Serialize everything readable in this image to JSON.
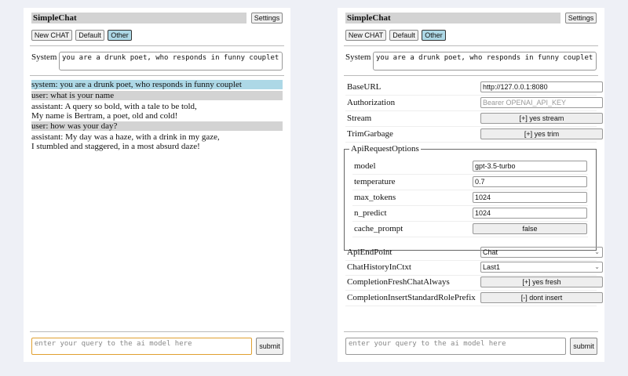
{
  "app": {
    "title": "SimpleChat",
    "settings_label": "Settings",
    "new_chat_label": "New CHAT",
    "default_label": "Default",
    "other_label": "Other",
    "system_label": "System",
    "system_prompt": "you are a drunk poet, who responds in funny couplet",
    "query_placeholder": "enter your query to the ai model here",
    "submit_label": "submit"
  },
  "chat": {
    "messages": [
      {
        "role": "system",
        "lines": [
          "system: you are a drunk poet, who responds in funny couplet"
        ]
      },
      {
        "role": "user",
        "lines": [
          "user: what is your name"
        ]
      },
      {
        "role": "assistant",
        "lines": [
          "assistant: A query so bold, with a tale to be told,",
          "My name is Bertram, a poet, old and cold!"
        ]
      },
      {
        "role": "user",
        "lines": [
          "user: how was your day?"
        ]
      },
      {
        "role": "assistant",
        "lines": [
          "assistant: My day was a haze, with a drink in my gaze,",
          "I stumbled and staggered, in a most absurd daze!"
        ]
      }
    ]
  },
  "settings": {
    "base_url": {
      "label": "BaseURL",
      "value": "http://127.0.0.1:8080"
    },
    "authorization": {
      "label": "Authorization",
      "placeholder": "Bearer OPENAI_API_KEY"
    },
    "stream": {
      "label": "Stream",
      "value": "[+] yes stream"
    },
    "trim": {
      "label": "TrimGarbage",
      "value": "[+] yes trim"
    },
    "api_options": {
      "legend": "ApiRequestOptions",
      "model": {
        "label": "model",
        "value": "gpt-3.5-turbo"
      },
      "temperature": {
        "label": "temperature",
        "value": "0.7"
      },
      "max_tokens": {
        "label": "max_tokens",
        "value": "1024"
      },
      "n_predict": {
        "label": "n_predict",
        "value": "1024"
      },
      "cache_prompt": {
        "label": "cache_prompt",
        "value": "false"
      }
    },
    "endpoint": {
      "label": "ApiEndPoint",
      "value": "Chat"
    },
    "history": {
      "label": "ChatHistoryInCtxt",
      "value": "Last1"
    },
    "fresh": {
      "label": "CompletionFreshChatAlways",
      "value": "[+] yes fresh"
    },
    "prefix": {
      "label": "CompletionInsertStandardRolePrefix",
      "value": "[-] dont insert"
    }
  },
  "colors": {
    "system_bg": "#add8e6",
    "user_bg": "#d3d3d3",
    "focus_border": "#e0a030"
  }
}
